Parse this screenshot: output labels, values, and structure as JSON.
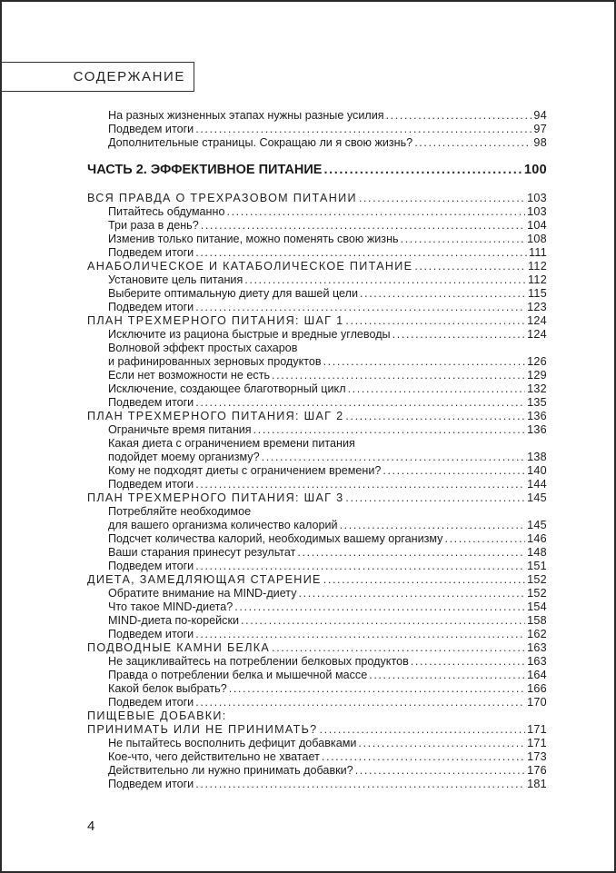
{
  "header": {
    "title": "СОДЕРЖАНИЕ"
  },
  "toc_top": [
    {
      "level": "sub",
      "lines": [
        "На разных жизненных этапах нужны разные усилия"
      ],
      "page": "94"
    },
    {
      "level": "sub",
      "lines": [
        "Подведем итоги"
      ],
      "page": "97"
    },
    {
      "level": "sub",
      "lines": [
        "Дополнительные страницы. Сокращаю ли я свою жизнь?"
      ],
      "page": "98"
    }
  ],
  "part": {
    "lines": [
      "ЧАСТЬ 2. ЭФФЕКТИВНОЕ ПИТАНИЕ"
    ],
    "page": "100"
  },
  "toc": [
    {
      "level": "chap",
      "lines": [
        "ВСЯ ПРАВДА О ТРЕХРАЗОВОМ ПИТАНИИ"
      ],
      "page": "103"
    },
    {
      "level": "sub",
      "lines": [
        "Питайтесь обдуманно"
      ],
      "page": "103"
    },
    {
      "level": "sub",
      "lines": [
        "Три раза в день?"
      ],
      "page": "104"
    },
    {
      "level": "sub",
      "lines": [
        "Изменив только питание, можно поменять свою жизнь"
      ],
      "page": "108"
    },
    {
      "level": "sub",
      "lines": [
        "Подведем итоги"
      ],
      "page": "111"
    },
    {
      "level": "chap",
      "lines": [
        "АНАБОЛИЧЕСКОЕ И КАТАБОЛИЧЕСКОЕ ПИТАНИЕ"
      ],
      "page": "112"
    },
    {
      "level": "sub",
      "lines": [
        "Установите цель питания"
      ],
      "page": "112"
    },
    {
      "level": "sub",
      "lines": [
        "Выберите оптимальную диету для вашей цели"
      ],
      "page": "115"
    },
    {
      "level": "sub",
      "lines": [
        "Подведем итоги"
      ],
      "page": "123"
    },
    {
      "level": "chap",
      "lines": [
        "ПЛАН ТРЕХМЕРНОГО ПИТАНИЯ: ШАГ 1"
      ],
      "page": "124"
    },
    {
      "level": "sub",
      "lines": [
        "Исключите из рациона быстрые и вредные углеводы"
      ],
      "page": "124"
    },
    {
      "level": "sub",
      "lines": [
        "Волновой эффект простых сахаров",
        "и рафинированных зерновых продуктов"
      ],
      "page": "126"
    },
    {
      "level": "sub",
      "lines": [
        "Если нет возможности не есть"
      ],
      "page": "129"
    },
    {
      "level": "sub",
      "lines": [
        "Исключение, создающее благотворный цикл"
      ],
      "page": "132"
    },
    {
      "level": "sub",
      "lines": [
        "Подведем итоги"
      ],
      "page": "135"
    },
    {
      "level": "chap",
      "lines": [
        "ПЛАН ТРЕХМЕРНОГО ПИТАНИЯ: ШАГ 2"
      ],
      "page": "136"
    },
    {
      "level": "sub",
      "lines": [
        "Ограничьте время питания"
      ],
      "page": "136"
    },
    {
      "level": "sub",
      "lines": [
        "Какая диета с ограничением времени питания",
        "подойдет моему организму?"
      ],
      "page": "138"
    },
    {
      "level": "sub",
      "lines": [
        "Кому не подходят диеты с ограничением времени?"
      ],
      "page": "140"
    },
    {
      "level": "sub",
      "lines": [
        "Подведем итоги"
      ],
      "page": "144"
    },
    {
      "level": "chap",
      "lines": [
        "ПЛАН ТРЕХМЕРНОГО ПИТАНИЯ: ШАГ 3"
      ],
      "page": "145"
    },
    {
      "level": "sub",
      "lines": [
        "Потребляйте необходимое",
        "для вашего организма количество калорий"
      ],
      "page": "145"
    },
    {
      "level": "sub",
      "lines": [
        "Подсчет количества калорий, необходимых вашему организму"
      ],
      "page": "146"
    },
    {
      "level": "sub",
      "lines": [
        "Ваши старания принесут результат"
      ],
      "page": "148"
    },
    {
      "level": "sub",
      "lines": [
        "Подведем итоги"
      ],
      "page": "151"
    },
    {
      "level": "chap",
      "lines": [
        "ДИЕТА, ЗАМЕДЛЯЮЩАЯ СТАРЕНИЕ"
      ],
      "page": "152"
    },
    {
      "level": "sub",
      "lines": [
        "Обратите внимание на MIND-диету"
      ],
      "page": "152"
    },
    {
      "level": "sub",
      "lines": [
        "Что такое MIND-диета?"
      ],
      "page": "154"
    },
    {
      "level": "sub",
      "lines": [
        "MIND-диета по-корейски"
      ],
      "page": "158"
    },
    {
      "level": "sub",
      "lines": [
        "Подведем итоги"
      ],
      "page": "162"
    },
    {
      "level": "chap",
      "lines": [
        "ПОДВОДНЫЕ КАМНИ БЕЛКА"
      ],
      "page": "163"
    },
    {
      "level": "sub",
      "lines": [
        "Не зацикливайтесь на потреблении белковых продуктов"
      ],
      "page": "163"
    },
    {
      "level": "sub",
      "lines": [
        "Правда о потреблении белка и мышечной массе"
      ],
      "page": "164"
    },
    {
      "level": "sub",
      "lines": [
        "Какой белок выбрать?"
      ],
      "page": "166"
    },
    {
      "level": "sub",
      "lines": [
        "Подведем итоги"
      ],
      "page": "170"
    },
    {
      "level": "chap",
      "lines": [
        "ПИЩЕВЫЕ ДОБАВКИ:",
        "ПРИНИМАТЬ ИЛИ НЕ ПРИНИМАТЬ?"
      ],
      "page": "171"
    },
    {
      "level": "sub",
      "lines": [
        "Не пытайтесь восполнить дефицит добавками"
      ],
      "page": "171"
    },
    {
      "level": "sub",
      "lines": [
        "Кое-что, чего действительно не хватает"
      ],
      "page": "173"
    },
    {
      "level": "sub",
      "lines": [
        "Действительно ли нужно принимать добавки?"
      ],
      "page": "176"
    },
    {
      "level": "sub",
      "lines": [
        "Подведем итоги"
      ],
      "page": "181"
    }
  ],
  "footer": {
    "page_number": "4"
  }
}
